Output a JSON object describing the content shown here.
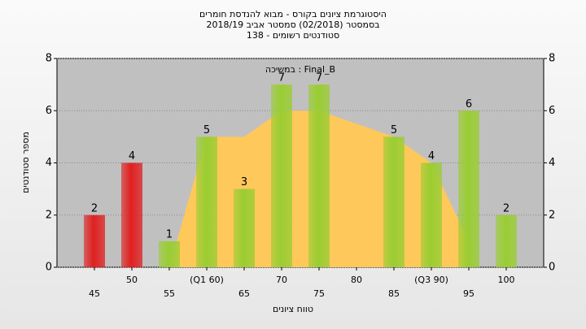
{
  "chart_data": {
    "type": "bar",
    "title": [
      "היסטוגרמת ציונים בקורס - מבוא להנדסת חומרים",
      "בסמסטר  (02/2018)  סמסטר אביב 2018/19",
      "סטודנטים רשומים - 138"
    ],
    "annotation": "במשיכה : Final_B",
    "x_label": "טווח ציונים",
    "y_label": "מספר סטודנטים",
    "categories": [
      "45",
      "50",
      "55",
      "(Q1 60)",
      "65",
      "70",
      "75",
      "80",
      "85",
      "(Q3 90)",
      "95",
      "100"
    ],
    "values": [
      2,
      4,
      1,
      5,
      3,
      7,
      7,
      null,
      5,
      4,
      6,
      2
    ],
    "colors": [
      "#e02020",
      "#e02020",
      "#9acd32",
      "#9acd32",
      "#9acd32",
      "#9acd32",
      "#9acd32",
      "#9acd32",
      "#9acd32",
      "#9acd32",
      "#9acd32",
      "#9acd32"
    ],
    "area": {
      "values": [
        null,
        null,
        0,
        5,
        5,
        6,
        6,
        5.5,
        5,
        4,
        1,
        null
      ],
      "color": "#ffc85a"
    },
    "ylim": [
      0,
      8
    ],
    "yticks": [
      0,
      2,
      4,
      6,
      8
    ],
    "grid": true
  }
}
